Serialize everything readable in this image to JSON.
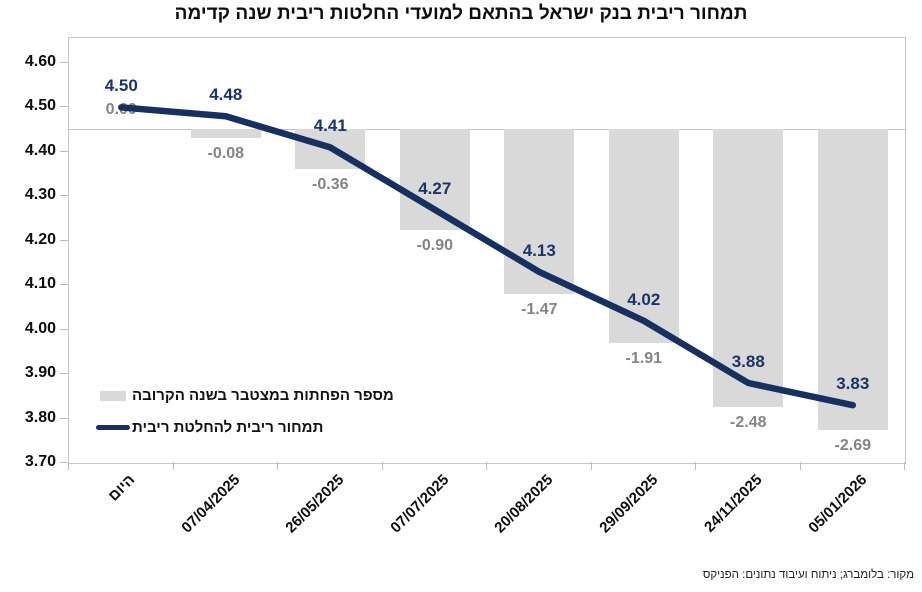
{
  "chart_data": {
    "type": "combo-line-bar",
    "title": "תמחור ריבית בנק ישראל בהתאם למועדי החלטות ריבית שנה קדימה",
    "categories": [
      "היום",
      "07/04/2025",
      "26/05/2025",
      "07/07/2025",
      "20/08/2025",
      "29/09/2025",
      "24/11/2025",
      "05/01/2026"
    ],
    "series": [
      {
        "name": "תמחור ריבית להחלטת ריבית",
        "type": "line",
        "color": "#16305f",
        "values": [
          4.5,
          4.48,
          4.41,
          4.27,
          4.13,
          4.02,
          3.88,
          3.83
        ]
      },
      {
        "name": "מספר הפחתות במצטבר בשנה הקרובה",
        "type": "bar",
        "color": "#d9d9d9",
        "values": [
          0.0,
          -0.08,
          -0.36,
          -0.9,
          -1.47,
          -1.91,
          -2.48,
          -2.69
        ]
      }
    ],
    "y_axis": {
      "min": 3.7,
      "max": 4.6,
      "step": 0.1,
      "ticks": [
        "4.60",
        "4.50",
        "4.40",
        "4.30",
        "4.20",
        "4.10",
        "4.00",
        "3.90",
        "3.80",
        "3.70"
      ]
    },
    "grid": "off",
    "legend_position": "inside-bottom-left",
    "source": "מקור: בלומברג; ניתוח ועיבוד נתונים: הפניקס",
    "colors": {
      "line": "#16305f",
      "line_label": "#1b3466",
      "bar": "#d9d9d9",
      "bar_label": "#848484",
      "axis_text": "#0d0d0d",
      "baseline": "#c2c2c2",
      "plot_border": "#c6c6c6"
    }
  }
}
